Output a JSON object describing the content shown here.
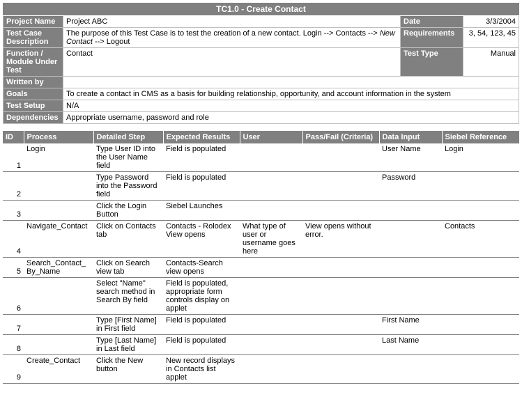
{
  "title": "TC1.0 - Create Contact",
  "meta": {
    "labels": {
      "projectName": "Project Name",
      "date": "Date",
      "description": "Test Case Description",
      "requirements": "Requirements",
      "functionModule": "Function / Module Under Test",
      "testType": "Test Type",
      "writtenBy": "Written by",
      "goals": "Goals",
      "testSetup": "Test Setup",
      "dependencies": "Dependencies"
    },
    "projectName": "Project ABC",
    "date": "3/3/2004",
    "description_part1": "The purpose of this Test Case is to test the creation of a new contact.  Login --> Contacts --> ",
    "description_italic": "New Contact",
    "description_part2": " --> Logout",
    "requirements": "3, 54, 123, 45",
    "functionModule": "Contact",
    "testType": "Manual",
    "writtenBy": "",
    "goals": "To create a contact in CMS as a basis for building relationship, opportunity, and account information in the system",
    "testSetup": "N/A",
    "dependencies": "Appropriate username, password and role"
  },
  "columns": {
    "id": "ID",
    "process": "Process",
    "detailedStep": "Detailed Step",
    "expected": "Expected Results",
    "user": "User",
    "passFail": "Pass/Fail (Criteria)",
    "dataInput": "Data Input",
    "siebel": "Siebel Reference"
  },
  "steps": [
    {
      "id": "1",
      "process": "Login",
      "step": "Type User ID into the User Name field",
      "expected": "Field is populated",
      "user": "",
      "passFail": "",
      "dataInput": "User Name",
      "siebel": "Login"
    },
    {
      "id": "2",
      "process": "",
      "step": "Type Password into the Password field",
      "expected": "Field is populated",
      "user": "",
      "passFail": "",
      "dataInput": "Password",
      "siebel": ""
    },
    {
      "id": "3",
      "process": "",
      "step": "Click the Login Button",
      "expected": "Siebel Launches",
      "user": "",
      "passFail": "",
      "dataInput": "",
      "siebel": ""
    },
    {
      "id": "4",
      "process": "Navigate_Contact",
      "step": "Click on Contacts tab",
      "expected": "Contacts - Rolodex View opens",
      "user": "What type of user or username goes here",
      "passFail": "View opens without error.",
      "dataInput": "",
      "siebel": "Contacts"
    },
    {
      "id": "5",
      "process": "Search_Contact_\nBy_Name",
      "step": "Click on Search view tab",
      "expected": "Contacts-Search view opens",
      "user": "",
      "passFail": "",
      "dataInput": "",
      "siebel": ""
    },
    {
      "id": "6",
      "process": "",
      "step": "Select \"Name\" search method in Search By field",
      "expected": "Field is populated, appropriate form controls display on applet",
      "user": "",
      "passFail": "",
      "dataInput": "",
      "siebel": ""
    },
    {
      "id": "7",
      "process": "",
      "step": "Type [First Name] in First field",
      "expected": "Field is populated",
      "user": "",
      "passFail": "",
      "dataInput": "First Name",
      "siebel": ""
    },
    {
      "id": "8",
      "process": "",
      "step": "Type [Last Name] in Last field",
      "expected": "Field is populated",
      "user": "",
      "passFail": "",
      "dataInput": "Last Name",
      "siebel": ""
    },
    {
      "id": "9",
      "process": "Create_Contact",
      "step": "Click the New button",
      "expected": "New record displays in Contacts list applet",
      "user": "",
      "passFail": "",
      "dataInput": "",
      "siebel": ""
    }
  ],
  "layout": {
    "metaLabelWidth": 86,
    "metaSideLabelWidth": 90,
    "metaSideValWidth": 80,
    "columnsWidth": [
      30,
      100,
      100,
      110,
      90,
      110,
      90,
      111
    ],
    "colors": {
      "headerBg": "#808080",
      "headerFg": "#ffffff",
      "border": "#c0c0c0",
      "rowBorder": "#808080"
    }
  }
}
